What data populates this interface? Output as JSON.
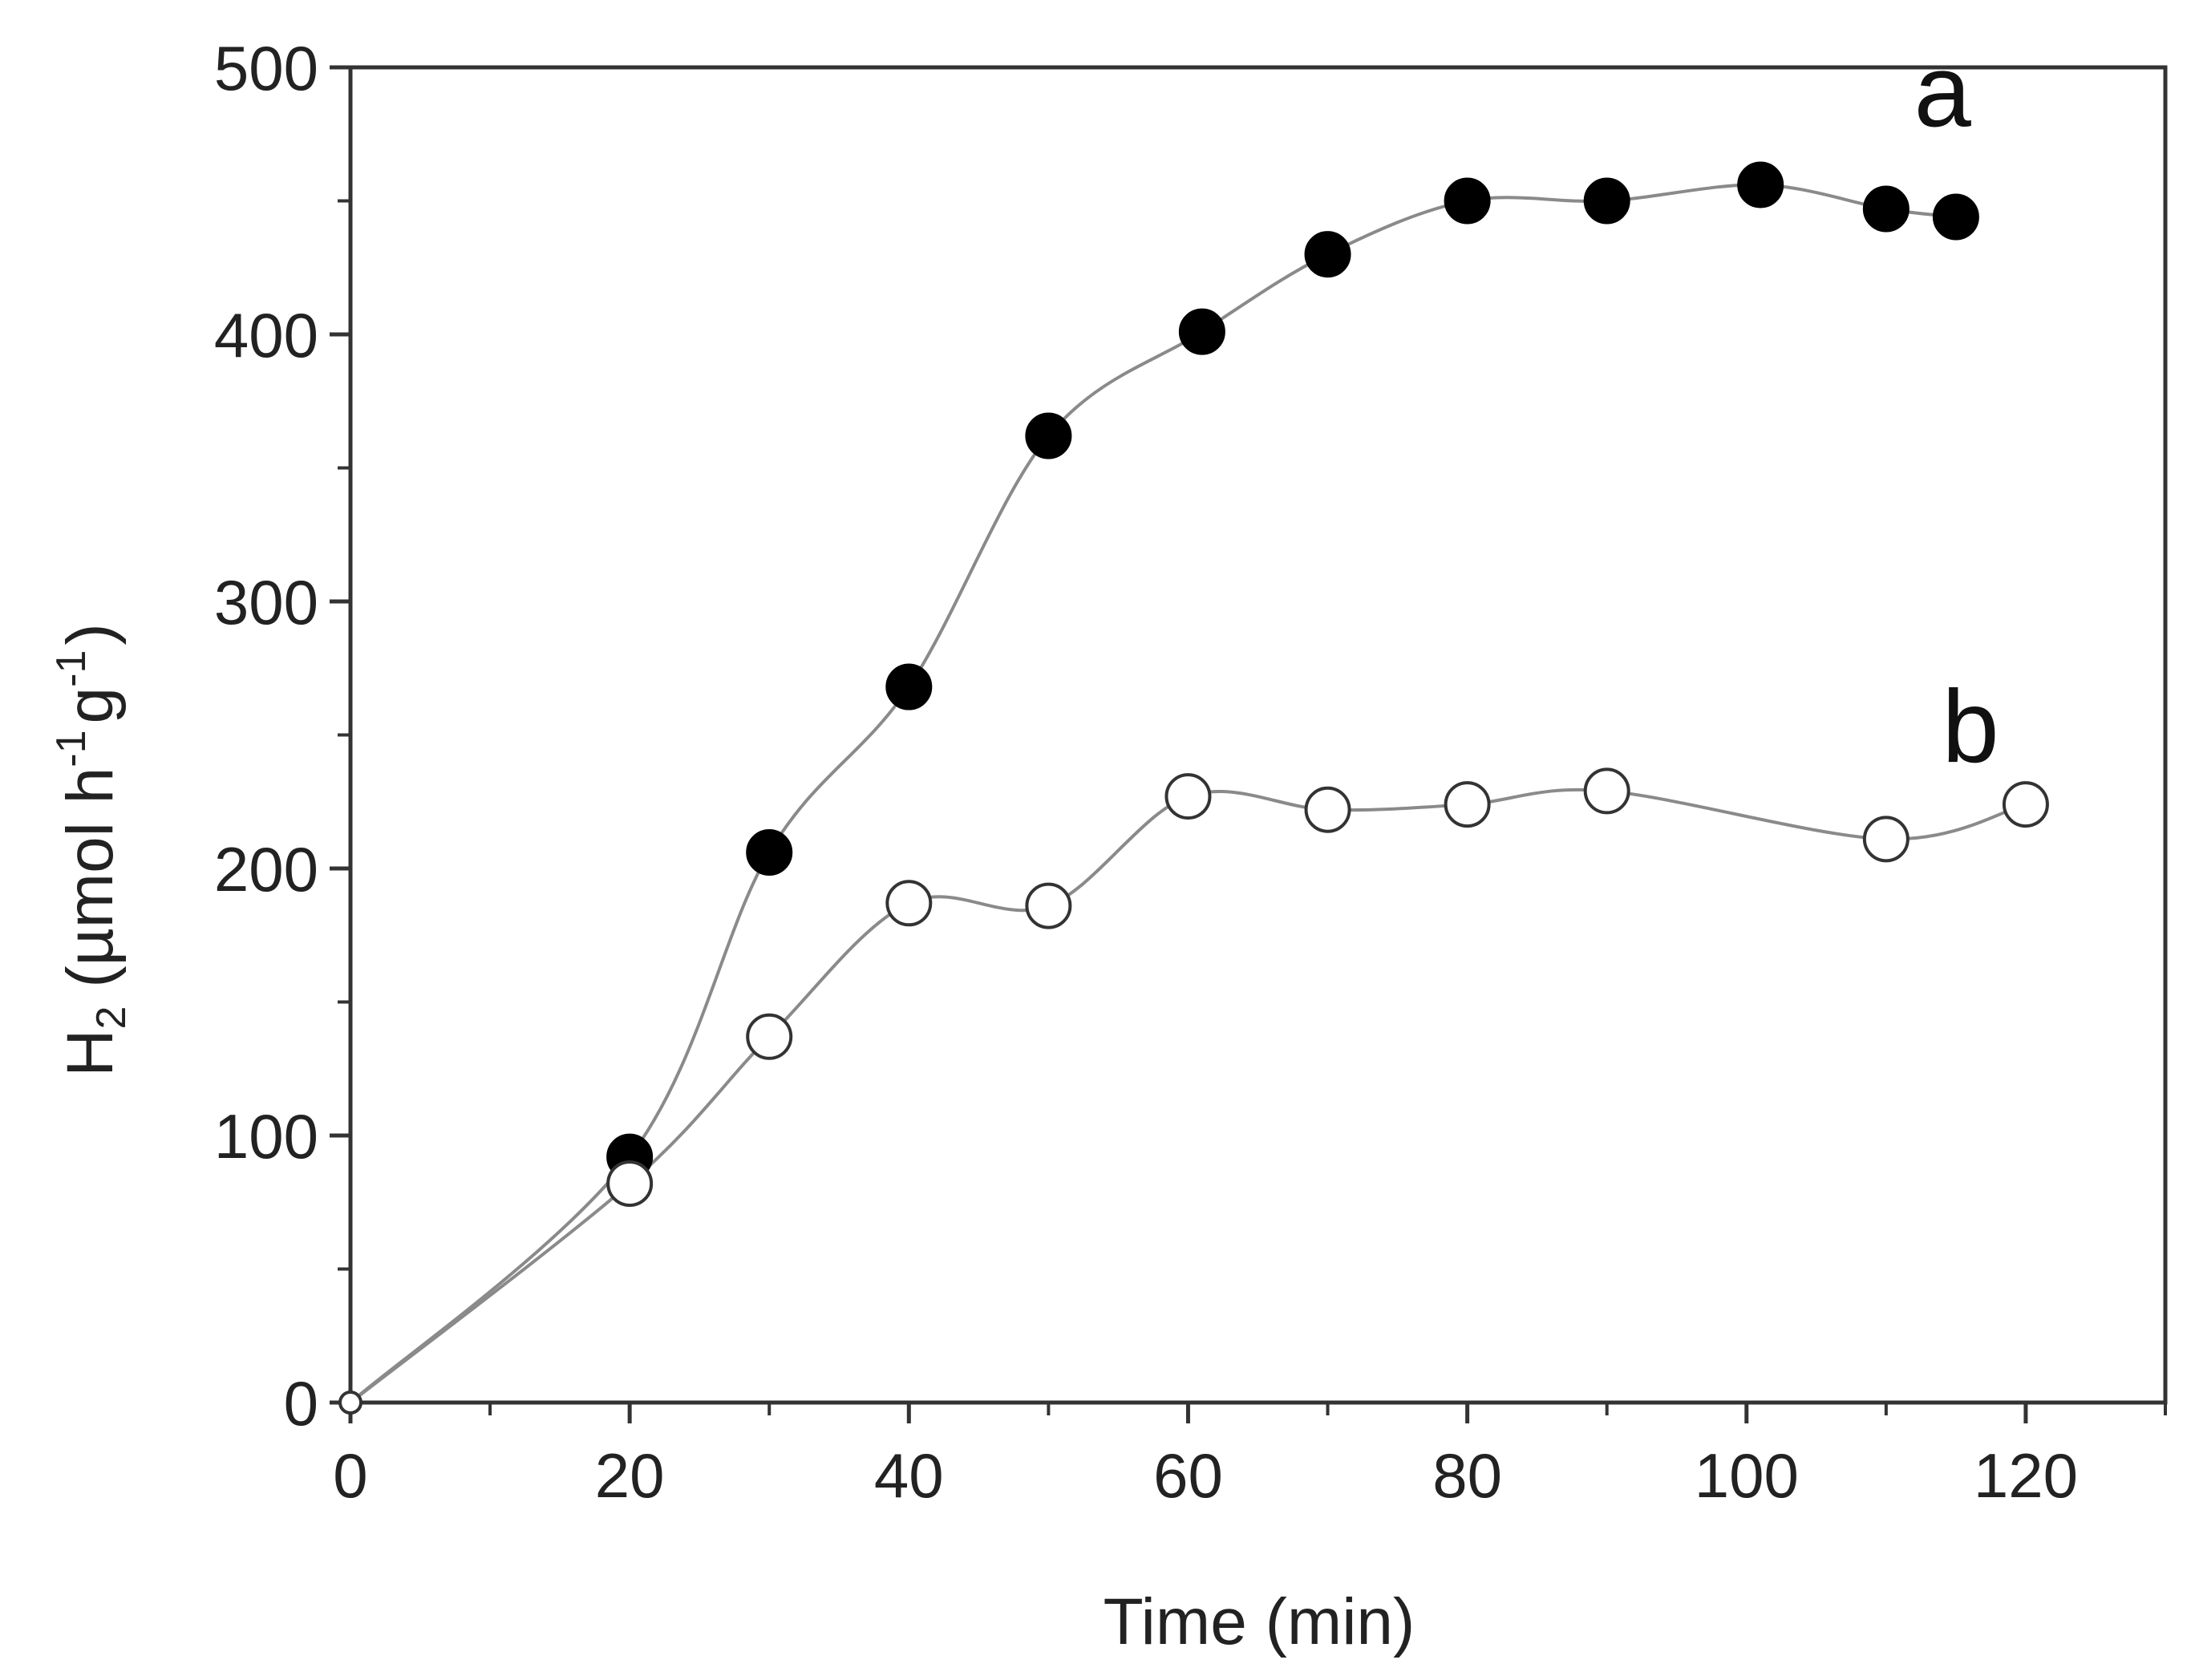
{
  "chart_data": {
    "type": "scatter",
    "title": "",
    "xlabel": "Time (min)",
    "ylabel": {
      "main": "H",
      "sub": "2",
      "unit_open": " (µmol h",
      "sup_h": "-1",
      "unit_g": "g",
      "sup_g": "-1",
      "unit_close": ")"
    },
    "xlim": [
      0,
      130
    ],
    "ylim": [
      0,
      500
    ],
    "xticks": [
      0,
      20,
      40,
      60,
      80,
      100,
      120
    ],
    "yticks": [
      0,
      100,
      200,
      300,
      400,
      500
    ],
    "x_minor_step": 10,
    "y_minor_step": 50,
    "grid": false,
    "series": [
      {
        "name": "a",
        "marker": "filled-circle",
        "color": "#000000",
        "line_color": "#8a8a8a",
        "x": [
          0,
          20,
          30,
          40,
          50,
          61,
          70,
          80,
          90,
          101,
          110,
          115
        ],
        "y": [
          0,
          92,
          206,
          268,
          362,
          401,
          430,
          450,
          450,
          456,
          447,
          444
        ],
        "label_at": {
          "x": 112,
          "y": 478
        }
      },
      {
        "name": "b",
        "marker": "open-circle",
        "color": "#000000",
        "line_color": "#8a8a8a",
        "x": [
          0,
          20,
          30,
          40,
          50,
          60,
          70,
          80,
          90,
          110,
          120
        ],
        "y": [
          0,
          82,
          137,
          187,
          186,
          227,
          222,
          224,
          229,
          211,
          224
        ],
        "label_at": {
          "x": 114,
          "y": 240
        }
      }
    ]
  }
}
